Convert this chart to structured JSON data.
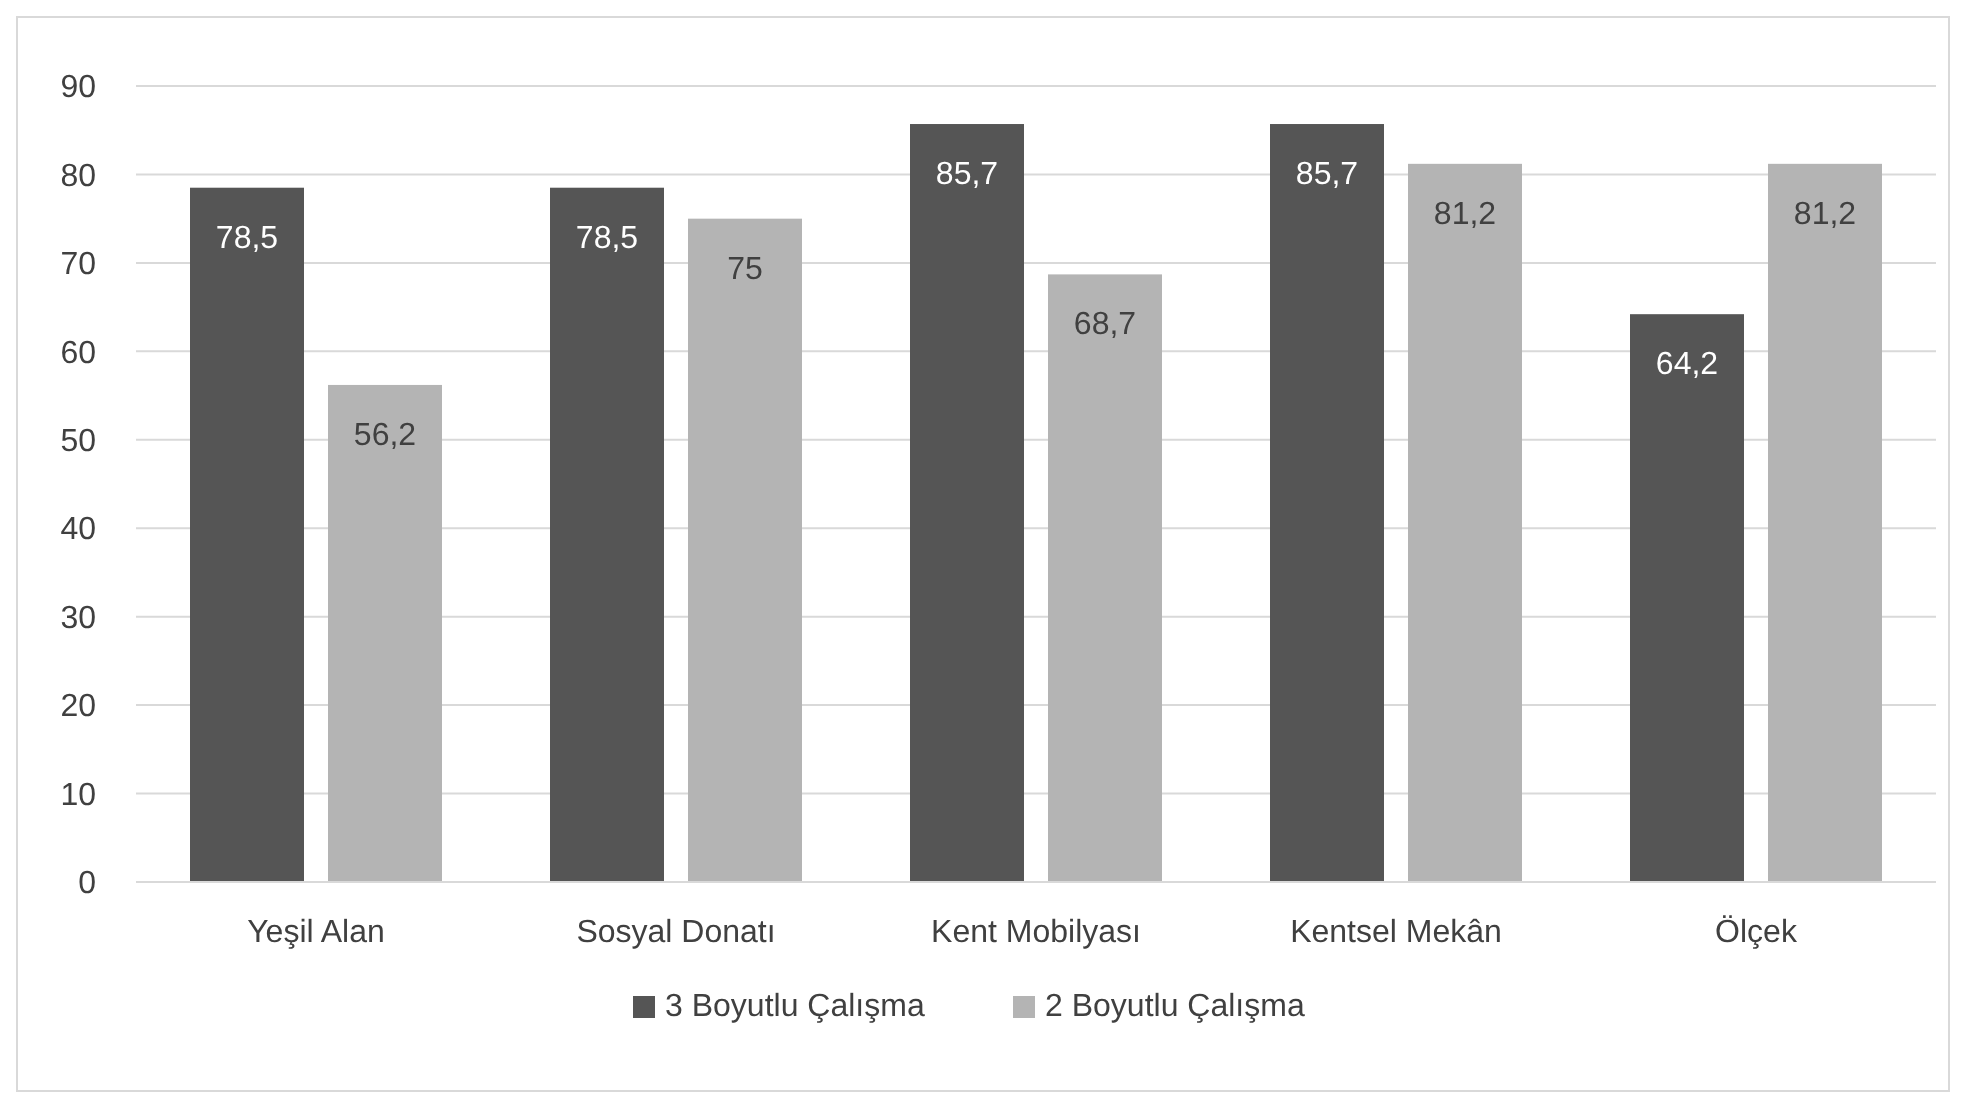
{
  "chart_data": {
    "type": "bar",
    "categories": [
      "Yeşil Alan",
      "Sosyal Donatı",
      "Kent Mobilyası",
      "Kentsel Mekân",
      "Ölçek"
    ],
    "series": [
      {
        "name": "3 Boyutlu Çalışma",
        "color": "#555555",
        "values": [
          78.5,
          78.5,
          85.7,
          85.7,
          64.2
        ],
        "value_labels": [
          "78,5",
          "78,5",
          "85,7",
          "85,7",
          "64,2"
        ]
      },
      {
        "name": "2 Boyutlu Çalışma",
        "color": "#b4b4b4",
        "values": [
          56.2,
          75,
          68.7,
          81.2,
          81.2
        ],
        "value_labels": [
          "56,2",
          "75",
          "68,7",
          "81,2",
          "81,2"
        ]
      }
    ],
    "ylim": [
      0,
      90
    ],
    "yticks": [
      0,
      10,
      20,
      30,
      40,
      50,
      60,
      70,
      80,
      90
    ],
    "grid": "y",
    "legend": "bottom"
  }
}
